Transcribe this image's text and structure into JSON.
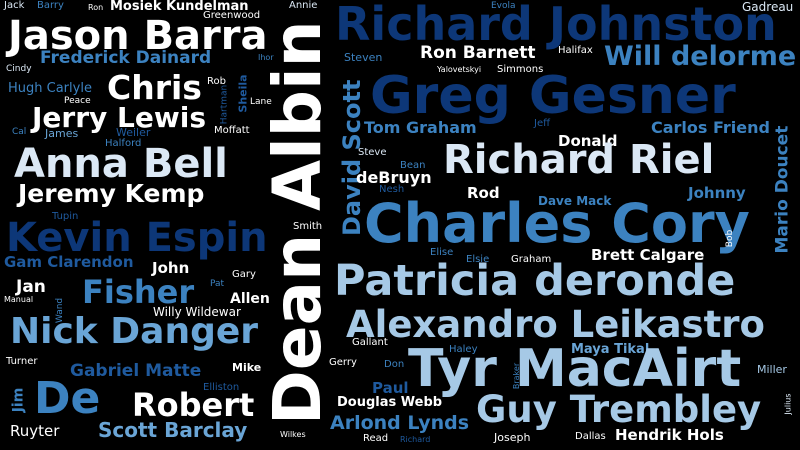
{
  "words": {
    "jack": "Jack",
    "barry": "Barry",
    "ron": "Ron",
    "mosiek_kundelman": "Mosiek Kundelman",
    "evola": "Evola",
    "gadreau": "Gadreau",
    "greenwood": "Greenwood",
    "annie": "Annie",
    "jason_barra": "Jason Barra",
    "richard_johnston": "Richard Johnston",
    "frederick_dainard": "Frederick Dainard",
    "ihor": "Ihor",
    "steven": "Steven",
    "ron_barnett": "Ron Barnett",
    "halifax": "Halifax",
    "will_delorme": "Will delorme",
    "cindy": "Cindy",
    "yalovetskyi": "Yalovetskyi",
    "simmons": "Simmons",
    "hugh_carlyle": "Hugh Carlyle",
    "chris": "Chris",
    "rob": "Rob",
    "greg_gesner": "Greg Gesner",
    "peace": "Peace",
    "hartman": "Hartman",
    "sheila": "Sheila",
    "lane": "Lane",
    "jerry_lewis": "Jerry Lewis",
    "cal": "Cal",
    "james": "James",
    "weiler": "Weiler",
    "moffatt": "Moffatt",
    "tom_graham": "Tom Graham",
    "jeff": "Jeff",
    "carlos_friend": "Carlos Friend",
    "halford": "Halford",
    "donald": "Donald",
    "dean_albin": "Dean Albin",
    "david_scott": "David Scott",
    "steve": "Steve",
    "anna_bell": "Anna Bell",
    "richard_riel": "Richard Riel",
    "mario_doucet": "Mario Doucet",
    "bean": "Bean",
    "debruyn": "deBruyn",
    "nesh": "Nesh",
    "jeremy_kemp": "Jeremy Kemp",
    "rod": "Rod",
    "johnny": "Johnny",
    "dave_mack": "Dave Mack",
    "tupin": "Tupin",
    "charles_cory": "Charles Cory",
    "kevin_espin": "Kevin Espin",
    "smith": "Smith",
    "bob": "Bob",
    "elise": "Elise",
    "elsie": "Elsie",
    "graham": "Graham",
    "brett_calgare": "Brett Calgare",
    "gam_clarendon": "Gam Clarendon",
    "john": "John",
    "gary": "Gary",
    "patricia_deronde": "Patricia deronde",
    "jan": "Jan",
    "pat": "Pat",
    "fisher": "Fisher",
    "manual": "Manual",
    "allen": "Allen",
    "wand": "Wand",
    "willy_wildewar": "Willy Wildewar",
    "alexandro_leikastro": "Alexandro Leikastro",
    "nick_danger": "Nick Danger",
    "gallant": "Gallant",
    "maya_tikal": "Maya Tikal",
    "haley": "Haley",
    "turner": "Turner",
    "gerry": "Gerry",
    "don": "Don",
    "braker": "Braker",
    "miller": "Miller",
    "gabriel_matte": "Gabriel Matte",
    "mike": "Mike",
    "tyr_macairt": "Tyr MacAirt",
    "jim": "Jim",
    "de": "De",
    "paul": "Paul",
    "elliston": "Elliston",
    "julius": "Julius",
    "robert": "Robert",
    "douglas_webb": "Douglas Webb",
    "guy_trembley": "Guy Trembley",
    "ruyter": "Ruyter",
    "scott_barclay": "Scott Barclay",
    "arlond_lynds": "Arlond Lynds",
    "wilkes": "Wilkes",
    "read": "Read",
    "richard": "Richard",
    "joseph": "Joseph",
    "dallas": "Dallas",
    "hendrik_hols": "Hendrik Hols"
  }
}
